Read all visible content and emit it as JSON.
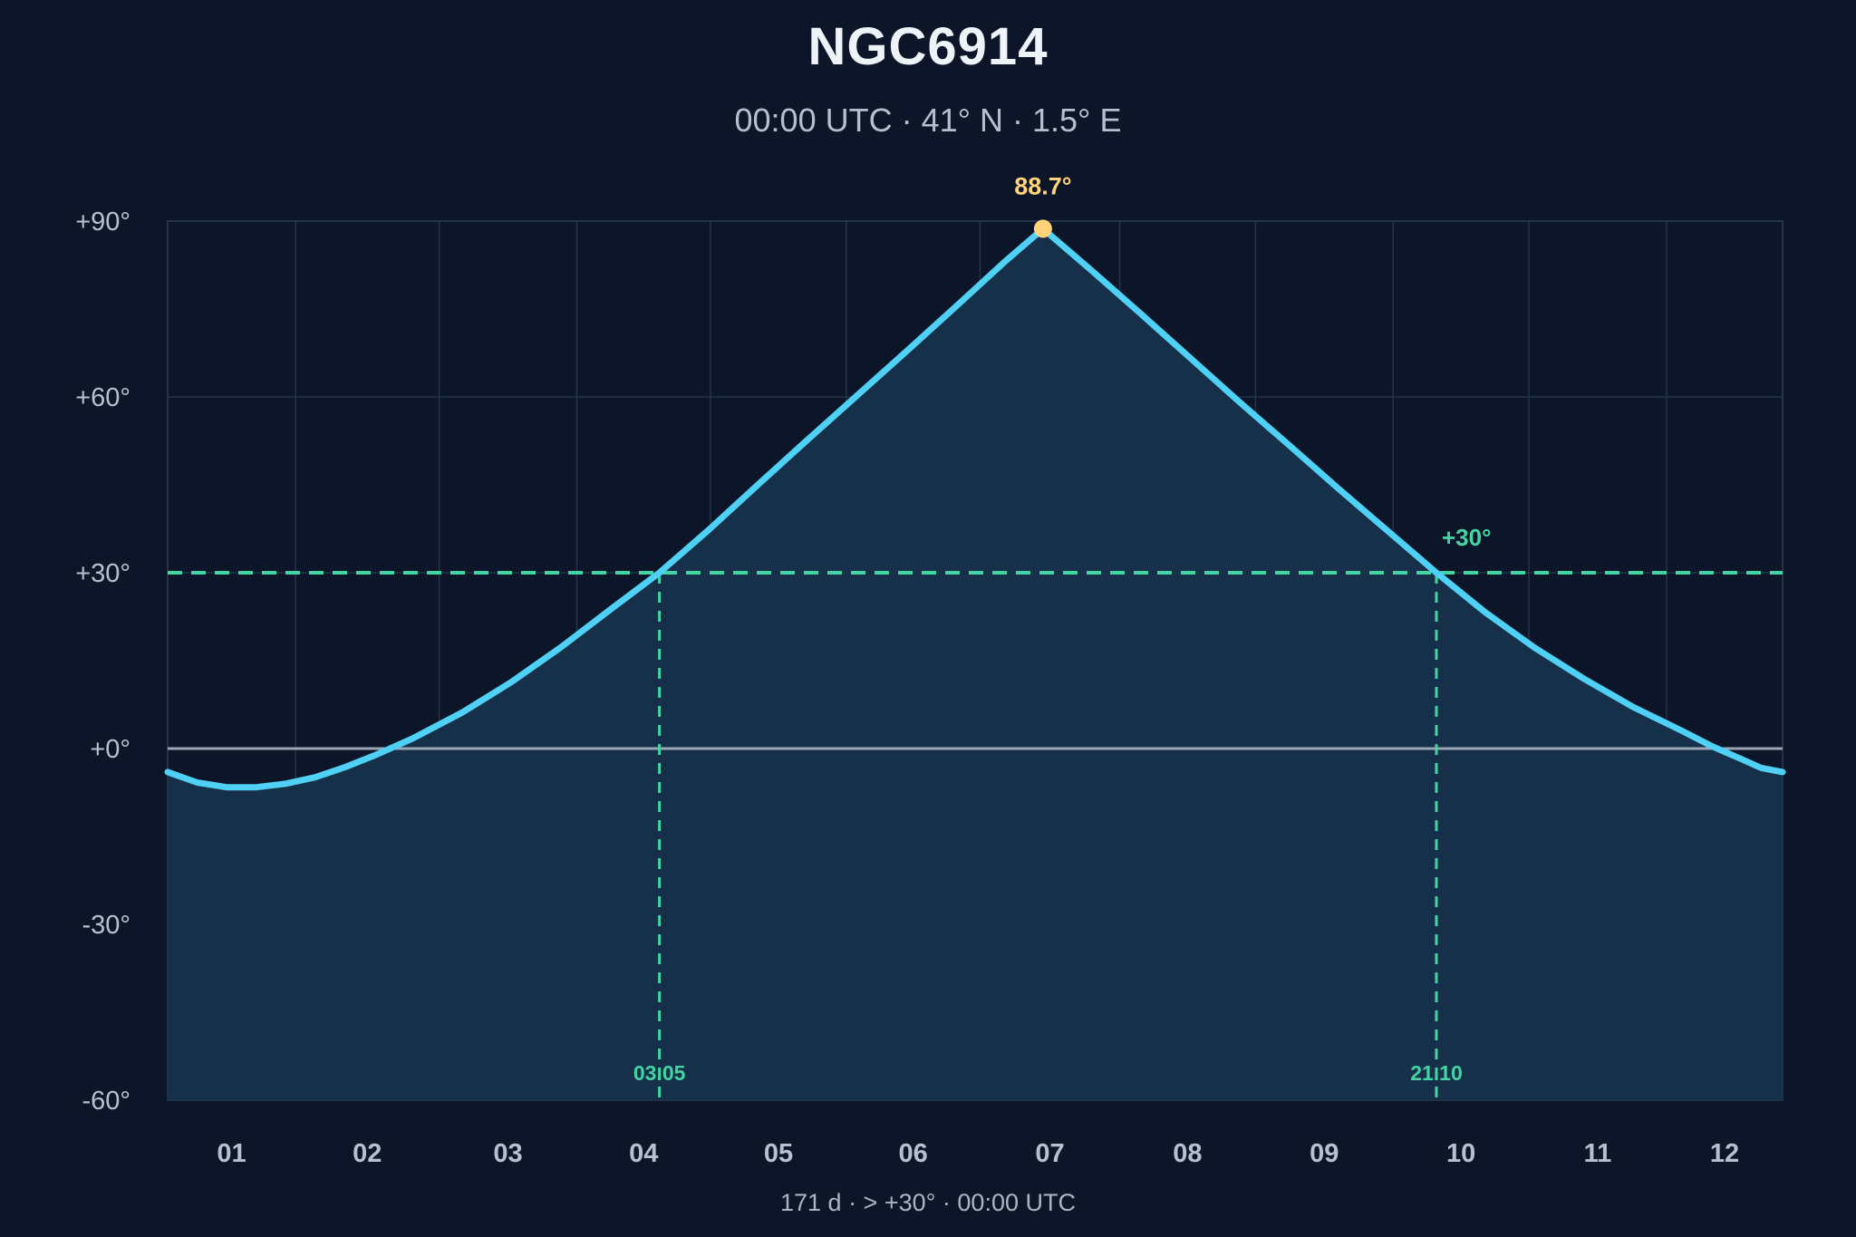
{
  "chart_data": {
    "type": "line",
    "title": "NGC6914",
    "subtitle": "00:00 UTC · 41° N · 1.5° E",
    "footer": "171 d  ·  > +30°  ·  00:00 UTC",
    "xlabel": "",
    "ylabel": "",
    "x_tick_labels": [
      "01",
      "02",
      "03",
      "04",
      "05",
      "06",
      "07",
      "08",
      "09",
      "10",
      "11",
      "12"
    ],
    "y_tick_labels": [
      "+90°",
      "+60°",
      "+30°",
      "+0°",
      "-30°",
      "-60°"
    ],
    "y_ticks": [
      90,
      60,
      30,
      0,
      -30,
      -60
    ],
    "ylim": [
      -60,
      90
    ],
    "grid": true,
    "series": [
      {
        "color": "#4fd1f5",
        "points": [
          [
            0.0,
            -4.0
          ],
          [
            0.15,
            -5.8
          ],
          [
            0.3,
            -6.6
          ],
          [
            0.45,
            -6.6
          ],
          [
            0.6,
            -6.0
          ],
          [
            0.75,
            -4.9
          ],
          [
            0.9,
            -3.2
          ],
          [
            1.05,
            -1.2
          ],
          [
            1.25,
            1.8
          ],
          [
            1.5,
            6.2
          ],
          [
            1.75,
            11.4
          ],
          [
            2.0,
            17.3
          ],
          [
            2.25,
            23.7
          ],
          [
            2.5,
            30.0
          ],
          [
            2.75,
            37.3
          ],
          [
            3.0,
            45.0
          ],
          [
            3.25,
            52.6
          ],
          [
            3.5,
            60.1
          ],
          [
            3.75,
            67.6
          ],
          [
            4.0,
            75.2
          ],
          [
            4.25,
            82.9
          ],
          [
            4.45,
            88.7
          ],
          [
            4.7,
            81.5
          ],
          [
            4.95,
            74.1
          ],
          [
            5.2,
            66.6
          ],
          [
            5.45,
            59.1
          ],
          [
            5.7,
            51.8
          ],
          [
            5.95,
            44.4
          ],
          [
            6.2,
            37.2
          ],
          [
            6.45,
            30.0
          ],
          [
            6.7,
            23.2
          ],
          [
            6.95,
            17.2
          ],
          [
            7.2,
            11.9
          ],
          [
            7.45,
            7.1
          ],
          [
            7.7,
            3.0
          ],
          [
            7.85,
            0.4
          ],
          [
            8.0,
            -1.8
          ],
          [
            8.1,
            -3.3
          ],
          [
            8.21,
            -4.0
          ]
        ]
      }
    ],
    "threshold": {
      "value": 30,
      "label": "+30°",
      "color": "#44d4a4"
    },
    "peak": {
      "x": 4.45,
      "y": 88.7,
      "label": "88.7°",
      "color": "#ffd47a"
    },
    "crossings": [
      {
        "x": 2.5,
        "label": "03.05"
      },
      {
        "x": 6.45,
        "label": "21.10"
      }
    ],
    "horizon_color": "#9aa6b6",
    "fill_color": "#16304a"
  }
}
